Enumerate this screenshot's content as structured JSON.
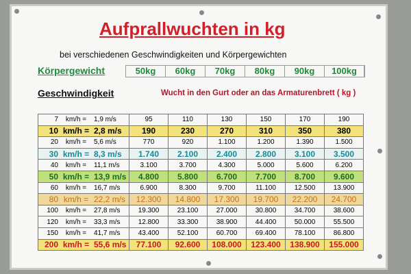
{
  "header": {
    "title": "Aufprallwuchten in kg",
    "subtitle": "bei verschiedenen Geschwindigkeiten und Körpergewichten"
  },
  "weight_label": "Körpergewicht",
  "weights": [
    "50kg",
    "60kg",
    "70kg",
    "80kg",
    "90kg",
    "100kg"
  ],
  "speed_label": "Geschwindigkeit",
  "impact_label": "Wucht in den Gurt oder an das Armaturenbrett ( kg )",
  "table": {
    "rows": [
      {
        "speed": [
          "7",
          "km/h =",
          "1,9 m/s"
        ],
        "values": [
          "95",
          "110",
          "130",
          "150",
          "170",
          "190"
        ]
      },
      {
        "speed": [
          "10",
          "km/h =",
          "2,8 m/s"
        ],
        "values": [
          "190",
          "230",
          "270",
          "310",
          "350",
          "380"
        ]
      },
      {
        "speed": [
          "20",
          "km/h =",
          "5,6 m/s"
        ],
        "values": [
          "770",
          "920",
          "1.100",
          "1.200",
          "1.390",
          "1.500"
        ]
      },
      {
        "speed": [
          "30",
          "km/h =",
          "8,3 m/s"
        ],
        "values": [
          "1.740",
          "2.100",
          "2.400",
          "2.800",
          "3.100",
          "3.500"
        ]
      },
      {
        "speed": [
          "40",
          "km/h =",
          "11,1 m/s"
        ],
        "values": [
          "3.100",
          "3.700",
          "4.300",
          "5.000",
          "5.600",
          "6.200"
        ]
      },
      {
        "speed": [
          "50",
          "km/h =",
          "13,9 m/s"
        ],
        "values": [
          "4.800",
          "5.800",
          "6.700",
          "7.700",
          "8.700",
          "9.600"
        ]
      },
      {
        "speed": [
          "60",
          "km/h =",
          "16,7 m/s"
        ],
        "values": [
          "6.900",
          "8.300",
          "9.700",
          "11.100",
          "12.500",
          "13.900"
        ]
      },
      {
        "speed": [
          "80",
          "km/h =",
          "22,2 m/s"
        ],
        "values": [
          "12.300",
          "14.800",
          "17.300",
          "19.700",
          "22.200",
          "24.700"
        ]
      },
      {
        "speed": [
          "100",
          "km/h =",
          "27,8 m/s"
        ],
        "values": [
          "19.300",
          "23.100",
          "27.000",
          "30.800",
          "34.700",
          "38.600"
        ]
      },
      {
        "speed": [
          "120",
          "km/h =",
          "33,3 m/s"
        ],
        "values": [
          "12.800",
          "33.300",
          "38.900",
          "44.400",
          "50.000",
          "55.500"
        ]
      },
      {
        "speed": [
          "150",
          "km/h =",
          "41,7 m/s"
        ],
        "values": [
          "43.400",
          "52.100",
          "60.700",
          "69.400",
          "78.100",
          "86.800"
        ]
      },
      {
        "speed": [
          "200",
          "km/h =",
          "55,6 m/s"
        ],
        "values": [
          "77.100",
          "92.600",
          "108.000",
          "123.400",
          "138.900",
          "155.000"
        ]
      }
    ]
  }
}
